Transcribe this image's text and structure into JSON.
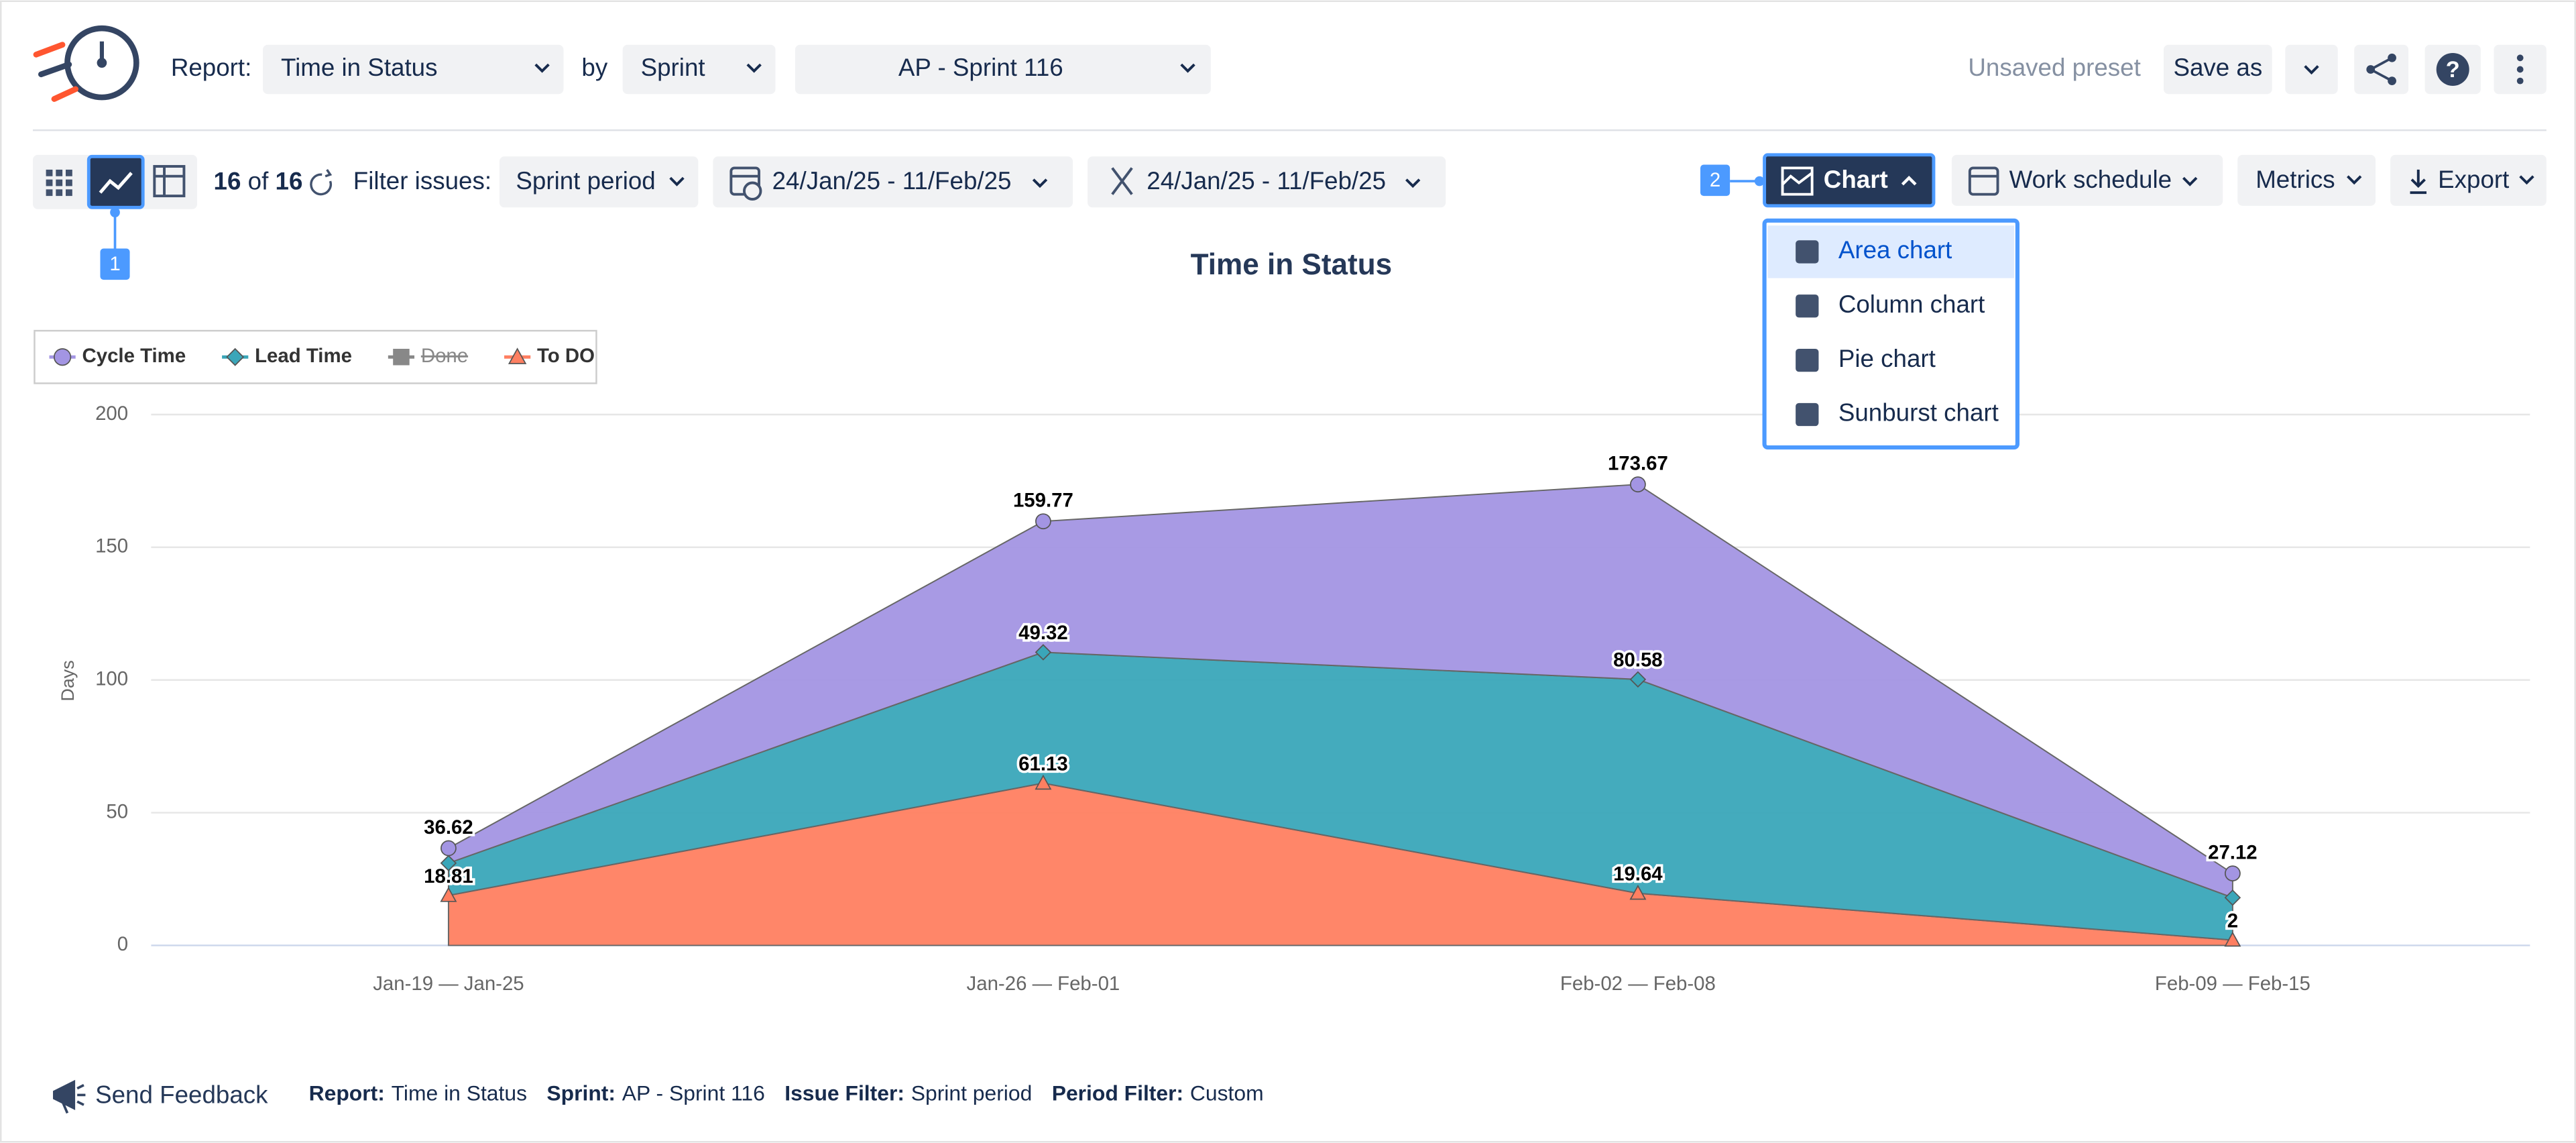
{
  "header": {
    "report_label": "Report:",
    "report": "Time in Status",
    "by_label": "by",
    "group_by": "Sprint",
    "sprint": "AP - Sprint 116",
    "preset": "Unsaved preset",
    "save_as": "Save as"
  },
  "toolbar": {
    "badge_1": "1",
    "shown": "16",
    "of": "of",
    "total": "16",
    "filter_label": "Filter issues:",
    "filter": "Sprint period",
    "period_1": "24/Jan/25 - 11/Feb/25",
    "period_2": "24/Jan/25 - 11/Feb/25",
    "badge_2": "2",
    "chart_button": "Chart",
    "work_schedule": "Work schedule",
    "metrics": "Metrics",
    "export": "Export"
  },
  "chart_menu": {
    "items": [
      "Area chart",
      "Column chart",
      "Pie chart",
      "Sunburst chart"
    ],
    "selected": 0
  },
  "chart_data": {
    "type": "area",
    "stacked": true,
    "title": "Time in Status",
    "y_label": "Days",
    "categories": [
      "Jan-19 — Jan-25",
      "Jan-26 — Feb-01",
      "Feb-02 — Feb-08",
      "Feb-09 — Feb-15"
    ],
    "ylim": [
      0,
      200
    ],
    "yticks": [
      0,
      50,
      100,
      150,
      200
    ],
    "grid": true,
    "legend": "top-left",
    "series": [
      {
        "name": "Cycle Time",
        "color": "#a395e3",
        "marker": "circle",
        "values": [
          5.62,
          49.32,
          73.45,
          9.12
        ]
      },
      {
        "name": "Lead Time",
        "color": "#3aa6b9",
        "marker": "diamond",
        "values": [
          12.19,
          49.32,
          80.58,
          16.0
        ],
        "value_labels": [
          null,
          "49.32",
          "80.58",
          null
        ]
      },
      {
        "name": "Done",
        "color": "#666666",
        "marker": "square",
        "visible": false,
        "values": [
          null,
          null,
          null,
          null
        ]
      },
      {
        "name": "To DO",
        "color": "#ff7f61",
        "marker": "triangle",
        "values": [
          18.81,
          61.13,
          19.64,
          2
        ]
      }
    ],
    "stack_totals": [
      36.62,
      159.77,
      173.67,
      27.12
    ]
  },
  "footer": {
    "feedback": "Send Feedback",
    "items": [
      {
        "label": "Report:",
        "value": "Time in Status"
      },
      {
        "label": "Sprint:",
        "value": "AP - Sprint 116"
      },
      {
        "label": "Issue Filter:",
        "value": "Sprint period"
      },
      {
        "label": "Period Filter:",
        "value": "Custom"
      }
    ]
  }
}
